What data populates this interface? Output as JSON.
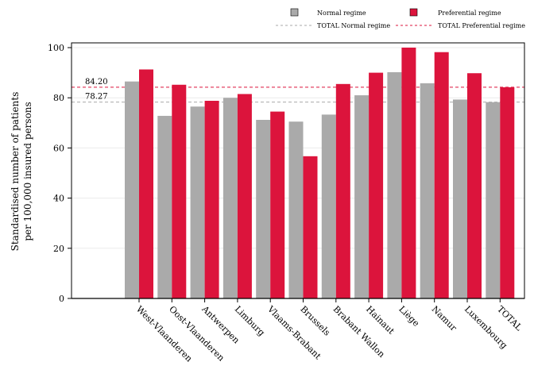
{
  "chart_data": {
    "type": "bar",
    "title": "",
    "xlabel": "",
    "ylabel_lines": [
      "Standardised number of patients",
      "per 100,000 insured persons"
    ],
    "ylim": [
      0,
      100
    ],
    "yticks": [
      0,
      20,
      40,
      60,
      80,
      100
    ],
    "grid": true,
    "legend_position": "top-right",
    "categories": [
      "West-Vlaanderen",
      "Oost-Vlaanderen",
      "Antwerpen",
      "Limburg",
      "Vlaams-Brabant",
      "Brussels",
      "Brabant Wallon",
      "Hainaut",
      "Liège",
      "Namur",
      "Luxembourg",
      "TOTAL"
    ],
    "series": [
      {
        "name": "Normal regime",
        "color": "#aaaaaa",
        "values": [
          86.5,
          72.8,
          76.5,
          80.0,
          71.2,
          70.5,
          73.3,
          81.0,
          90.2,
          85.8,
          79.3,
          78.27
        ]
      },
      {
        "name": "Preferential regime",
        "color": "#dc143c",
        "values": [
          91.3,
          85.2,
          78.8,
          81.5,
          74.5,
          56.7,
          85.5,
          90.0,
          100.0,
          98.2,
          89.8,
          84.2
        ]
      }
    ],
    "reference_lines": [
      {
        "name": "TOTAL Normal regime",
        "value": 78.27,
        "label": "78.27",
        "color": "#aaaaaa"
      },
      {
        "name": "TOTAL Preferential regime",
        "value": 84.2,
        "label": "84.20",
        "color": "#dc143c"
      }
    ]
  }
}
